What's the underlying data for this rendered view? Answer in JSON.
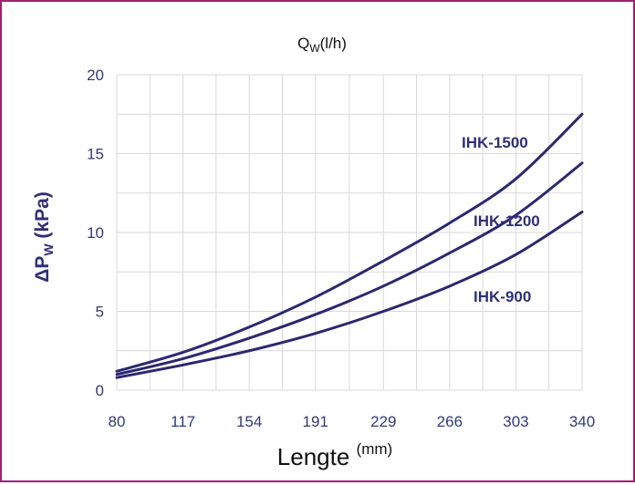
{
  "chart_data": {
    "type": "line",
    "top_label": {
      "base": "Q",
      "sub": "W",
      "rest": "(l/h)"
    },
    "xlabel": {
      "text": "Lengte ",
      "sup": "(mm)"
    },
    "ylabel": {
      "prefix": "ΔP",
      "sub": "W",
      "rest": " (kPa)"
    },
    "x_ticks": [
      "80",
      "117",
      "154",
      "191",
      "229",
      "266",
      "303",
      "340"
    ],
    "y_ticks": [
      "0",
      "5",
      "10",
      "15",
      "20"
    ],
    "xlim": [
      80,
      340
    ],
    "ylim": [
      0,
      20
    ],
    "grid": true,
    "x": [
      80,
      117,
      154,
      191,
      229,
      266,
      303,
      340
    ],
    "series": [
      {
        "name": "IHK-1500",
        "values": [
          1.2,
          2.4,
          4.0,
          5.9,
          8.2,
          10.6,
          13.4,
          17.5
        ]
      },
      {
        "name": "IHK-1200",
        "values": [
          1.0,
          2.0,
          3.3,
          4.8,
          6.6,
          8.7,
          11.1,
          14.4
        ]
      },
      {
        "name": "IHK-900",
        "values": [
          0.8,
          1.6,
          2.5,
          3.6,
          5.0,
          6.6,
          8.6,
          11.3
        ]
      }
    ],
    "colors": {
      "line": "#2b2870",
      "grid": "#d9d9d9",
      "axis_text": "#2f3a7a",
      "frame": "#a0206e"
    }
  }
}
